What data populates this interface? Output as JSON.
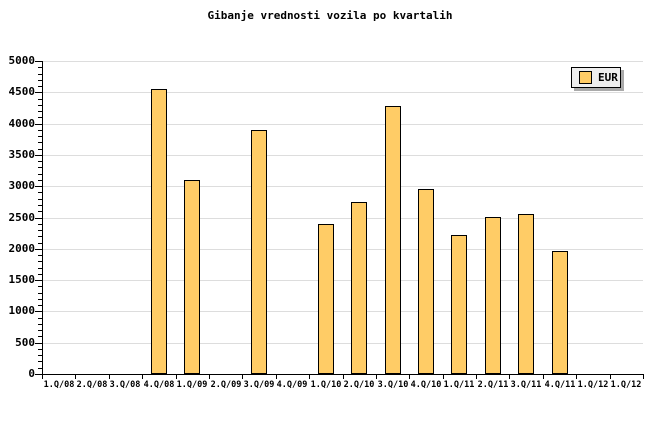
{
  "title": "Gibanje vrednosti vozila po kvartalih",
  "legend": {
    "label": "EUR",
    "swatch_color": "#ffcc66"
  },
  "colors": {
    "bar_fill": "#ffcc66",
    "bar_border": "#000000",
    "grid": "#dddddd",
    "axis": "#000000",
    "legend_bg": "#eeeeee",
    "legend_shadow": "#aaaaaa",
    "background": "#ffffff"
  },
  "chart_data": {
    "type": "bar",
    "title": "Gibanje vrednosti vozila po kvartalih",
    "categories": [
      "1.Q/08",
      "2.Q/08",
      "3.Q/08",
      "4.Q/08",
      "1.Q/09",
      "2.Q/09",
      "3.Q/09",
      "4.Q/09",
      "1.Q/10",
      "2.Q/10",
      "3.Q/10",
      "4.Q/10",
      "1.Q/11",
      "2.Q/11",
      "3.Q/11",
      "4.Q/11",
      "1.Q/12",
      "1.Q/12"
    ],
    "series": [
      {
        "name": "EUR",
        "color": "#ffcc66",
        "values": [
          null,
          null,
          null,
          4550,
          3100,
          null,
          3900,
          null,
          2400,
          2740,
          4280,
          2960,
          2220,
          2500,
          2550,
          1960,
          null,
          null
        ]
      }
    ],
    "ylim": [
      0,
      5000
    ],
    "y_major_step": 500,
    "y_minor_step": 100,
    "y_tick_labels": [
      "0",
      "500",
      "1000",
      "1500",
      "2000",
      "2500",
      "3000",
      "3500",
      "4000",
      "4500",
      "5000"
    ],
    "xlabel": "",
    "ylabel": "",
    "grid": "horizontal-major",
    "legend_position": "top-right"
  }
}
